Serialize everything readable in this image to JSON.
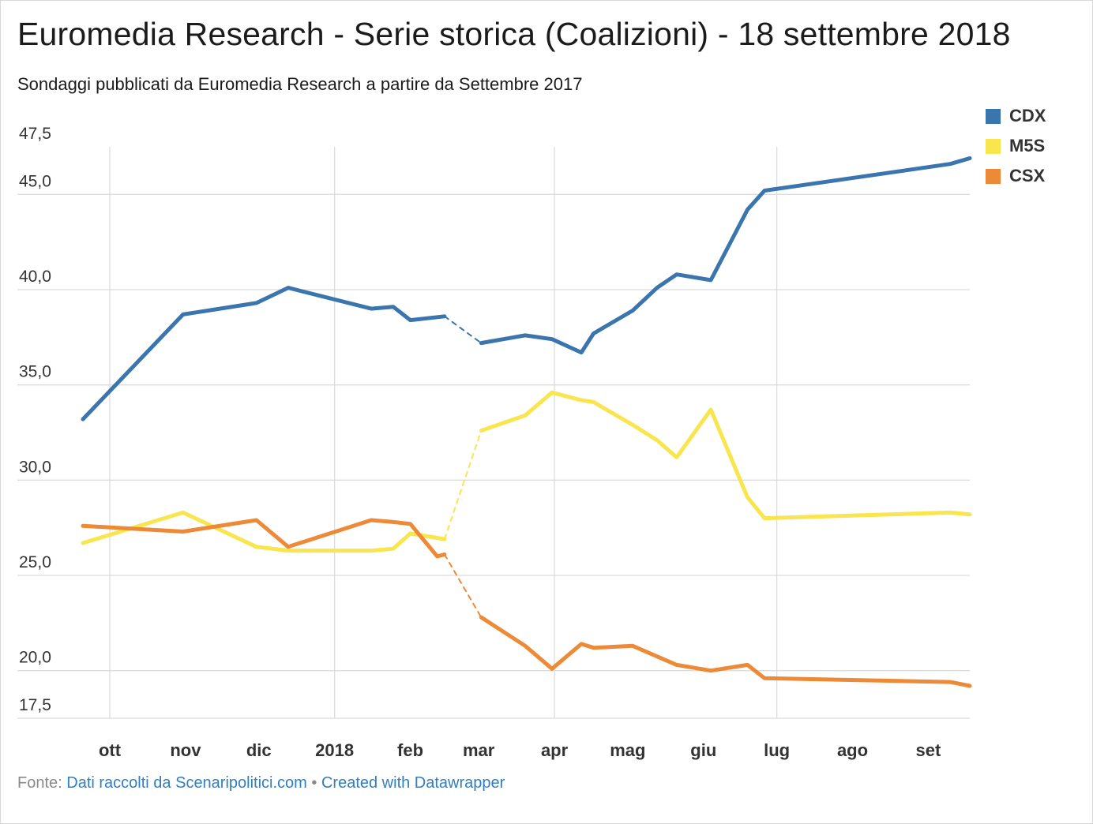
{
  "title": "Euromedia Research - Serie storica (Coalizioni) - 18 settembre 2018",
  "subtitle": "Sondaggi pubblicati da Euromedia Research a partire da Settembre 2017",
  "footer": {
    "source_label": "Fonte:",
    "source_text": "Dati raccolti da Scenaripolitici.com",
    "separator": "•",
    "credit": "Created with Datawrapper"
  },
  "chart_data": {
    "type": "line",
    "y_tick_labels": [
      "47,5",
      "45,0",
      "40,0",
      "35,0",
      "30,0",
      "25,0",
      "20,0",
      "17,5"
    ],
    "y_ticks": [
      47.5,
      45,
      40,
      35,
      30,
      25,
      20,
      17.5
    ],
    "y_gridlines": [
      17.5,
      20,
      25,
      30,
      35,
      40,
      45
    ],
    "ylim": [
      17.5,
      47.5
    ],
    "x_ticks": [
      {
        "label": "ott",
        "date": "2017-10-01",
        "grid": true
      },
      {
        "label": "nov",
        "date": "2017-11-01",
        "grid": false
      },
      {
        "label": "dic",
        "date": "2017-12-01",
        "grid": false
      },
      {
        "label": "2018",
        "date": "2018-01-01",
        "grid": true
      },
      {
        "label": "feb",
        "date": "2018-02-01",
        "grid": false
      },
      {
        "label": "mar",
        "date": "2018-03-01",
        "grid": false
      },
      {
        "label": "apr",
        "date": "2018-04-01",
        "grid": true
      },
      {
        "label": "mag",
        "date": "2018-05-01",
        "grid": false
      },
      {
        "label": "giu",
        "date": "2018-06-01",
        "grid": false
      },
      {
        "label": "lug",
        "date": "2018-07-01",
        "grid": true
      },
      {
        "label": "ago",
        "date": "2018-08-01",
        "grid": false
      },
      {
        "label": "set",
        "date": "2018-09-01",
        "grid": false
      }
    ],
    "xlim": [
      "2017-09-20",
      "2018-09-18"
    ],
    "gap": {
      "from": "2018-02-16",
      "to": "2018-03-02",
      "style": "dashed"
    },
    "legend_placement": "top-right",
    "series": [
      {
        "name": "CDX",
        "color": "#3a75ae",
        "points": [
          [
            "2017-09-20",
            33.2
          ],
          [
            "2017-10-31",
            38.7
          ],
          [
            "2017-11-30",
            39.3
          ],
          [
            "2017-12-13",
            40.1
          ],
          [
            "2018-01-16",
            39.0
          ],
          [
            "2018-01-25",
            39.1
          ],
          [
            "2018-02-01",
            38.4
          ],
          [
            "2018-02-15",
            38.6
          ],
          [
            "2018-03-02",
            37.2
          ],
          [
            "2018-03-20",
            37.6
          ],
          [
            "2018-03-31",
            37.4
          ],
          [
            "2018-04-12",
            36.7
          ],
          [
            "2018-04-17",
            37.7
          ],
          [
            "2018-05-03",
            38.9
          ],
          [
            "2018-05-13",
            40.1
          ],
          [
            "2018-05-21",
            40.8
          ],
          [
            "2018-06-04",
            40.5
          ],
          [
            "2018-06-19",
            44.2
          ],
          [
            "2018-06-26",
            45.2
          ],
          [
            "2018-09-10",
            46.6
          ],
          [
            "2018-09-18",
            46.9
          ]
        ]
      },
      {
        "name": "M5S",
        "color": "#f9e54e",
        "points": [
          [
            "2017-09-20",
            26.7
          ],
          [
            "2017-10-31",
            28.3
          ],
          [
            "2017-11-30",
            26.5
          ],
          [
            "2017-12-13",
            26.3
          ],
          [
            "2018-01-16",
            26.3
          ],
          [
            "2018-01-25",
            26.4
          ],
          [
            "2018-02-01",
            27.2
          ],
          [
            "2018-02-15",
            26.9
          ],
          [
            "2018-03-02",
            32.6
          ],
          [
            "2018-03-20",
            33.4
          ],
          [
            "2018-03-31",
            34.6
          ],
          [
            "2018-04-12",
            34.2
          ],
          [
            "2018-04-17",
            34.1
          ],
          [
            "2018-05-03",
            32.9
          ],
          [
            "2018-05-13",
            32.1
          ],
          [
            "2018-05-21",
            31.2
          ],
          [
            "2018-06-04",
            33.7
          ],
          [
            "2018-06-19",
            29.1
          ],
          [
            "2018-06-26",
            28.0
          ],
          [
            "2018-09-10",
            28.3
          ],
          [
            "2018-09-18",
            28.2
          ]
        ]
      },
      {
        "name": "CSX",
        "color": "#ed8a37",
        "points": [
          [
            "2017-09-20",
            27.6
          ],
          [
            "2017-10-31",
            27.3
          ],
          [
            "2017-11-30",
            27.9
          ],
          [
            "2017-12-13",
            26.5
          ],
          [
            "2018-01-16",
            27.9
          ],
          [
            "2018-01-25",
            27.8
          ],
          [
            "2018-02-01",
            27.7
          ],
          [
            "2018-02-12",
            26.0
          ],
          [
            "2018-02-15",
            26.1
          ],
          [
            "2018-03-02",
            22.8
          ],
          [
            "2018-03-20",
            21.3
          ],
          [
            "2018-03-31",
            20.1
          ],
          [
            "2018-04-12",
            21.4
          ],
          [
            "2018-04-17",
            21.2
          ],
          [
            "2018-05-03",
            21.3
          ],
          [
            "2018-05-21",
            20.3
          ],
          [
            "2018-06-04",
            20.0
          ],
          [
            "2018-06-19",
            20.3
          ],
          [
            "2018-06-26",
            19.6
          ],
          [
            "2018-09-10",
            19.4
          ],
          [
            "2018-09-18",
            19.2
          ]
        ]
      }
    ]
  }
}
